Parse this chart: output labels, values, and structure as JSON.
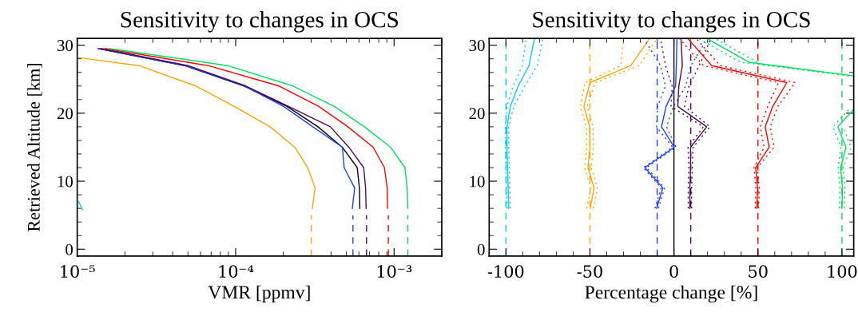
{
  "chart_data": [
    {
      "type": "line",
      "title": "Sensitivity to changes in OCS",
      "xlabel": "VMR [ppmv]",
      "ylabel": "Retrieved Altitude [km]",
      "log": "x",
      "xlim": [
        1e-05,
        0.002
      ],
      "xticks": [
        {
          "value": 1e-05,
          "label": "10⁻⁵"
        },
        {
          "value": 0.0001,
          "label": "10⁻⁴"
        },
        {
          "value": 0.001,
          "label": "10⁻³"
        }
      ],
      "ylim": [
        -1,
        31
      ],
      "yticks": [
        0,
        10,
        20,
        30
      ],
      "grid": false,
      "legend": false,
      "line_style": "solid",
      "series": [
        {
          "color": "#000000",
          "x": [
            0.000608,
            0.000604,
            0.000585,
            0.000471,
            0.000331,
            0.000211,
            0.000113,
            4.77e-05,
            1.36e-05
          ],
          "values": [
            6,
            9,
            12,
            15,
            18,
            21,
            24,
            27,
            29.5
          ]
        },
        {
          "color": "#ffa500",
          "x": [
            0.000305,
            0.000317,
            0.000285,
            0.000236,
            0.000165,
            9.8e-05,
            5.6e-05,
            2.45e-05,
            1e-05
          ],
          "values": [
            6,
            9,
            12,
            15,
            18,
            21,
            24,
            27,
            28.2
          ]
        },
        {
          "color": "#1f3fff",
          "x": [
            0.000545,
            0.000564,
            0.000484,
            0.000472,
            0.000307,
            0.000201,
            0.000114,
            4.8e-05,
            1.37e-05
          ],
          "values": [
            6,
            9,
            12,
            15,
            18,
            21,
            24,
            27,
            29.5
          ]
        },
        {
          "color": "#4b0a5a",
          "x": [
            0.000666,
            0.000661,
            0.000643,
            0.000518,
            0.000396,
            0.000216,
            0.000116,
            5e-05,
            1.42e-05
          ],
          "values": [
            6,
            9,
            12,
            15,
            18,
            21,
            24,
            27,
            29.5
          ]
        },
        {
          "color": "#ff0000",
          "x": [
            0.000908,
            0.000905,
            0.000869,
            0.000738,
            0.000511,
            0.000335,
            0.000188,
            6.7e-05,
            1.5e-05
          ],
          "values": [
            6,
            9,
            12,
            15,
            18,
            21,
            24,
            27,
            29.5
          ]
        },
        {
          "color": "#00e060",
          "x": [
            0.00122,
            0.00121,
            0.00117,
            0.00095,
            0.00065,
            0.00042,
            0.00023,
            8.9e-05,
            1.6e-05
          ],
          "values": [
            6,
            9,
            12,
            15,
            18,
            21,
            24,
            27,
            29.5
          ]
        },
        {
          "color": "#00ccff",
          "x": [
            1.02e-05,
            1.08e-05
          ],
          "values": [
            7,
            5.8
          ]
        },
        {
          "color": "#ffa500",
          "line_style": "dashed",
          "x": [
            0.0003,
            0.0003
          ],
          "values": [
            -1,
            5
          ]
        },
        {
          "color": "#1f3fff",
          "line_style": "dashed",
          "x": [
            0.00055,
            0.00055
          ],
          "values": [
            -1,
            5
          ]
        },
        {
          "color": "#4b0a5a",
          "line_style": "dashed",
          "x": [
            0.00067,
            0.00067
          ],
          "values": [
            -1,
            5
          ]
        },
        {
          "color": "#ff0000",
          "line_style": "dashed",
          "x": [
            0.00092,
            0.00092
          ],
          "values": [
            -1,
            5
          ]
        },
        {
          "color": "#00e060",
          "line_style": "dashed",
          "x": [
            0.00122,
            0.00122
          ],
          "values": [
            -1,
            5
          ]
        }
      ]
    },
    {
      "type": "line",
      "title": "Sensitivity to changes in OCS",
      "xlabel": "Percentage change [%]",
      "xlim": [
        -110,
        107
      ],
      "xticks": [
        -100,
        -50,
        0,
        50,
        100
      ],
      "ylim": [
        -1,
        31
      ],
      "yticks": [
        0,
        10,
        20,
        30
      ],
      "grid": false,
      "legend": false,
      "line_style": "solid",
      "ref_lines": [
        {
          "axis": "x",
          "value": -100,
          "color": "#00ccff",
          "line_style": "dashed"
        },
        {
          "axis": "x",
          "value": -50,
          "color": "#ffa500",
          "line_style": "dashed"
        },
        {
          "axis": "x",
          "value": -10,
          "color": "#1f3fff",
          "line_style": "dashed"
        },
        {
          "axis": "x",
          "value": 0,
          "color": "#000000",
          "line_style": "solid"
        },
        {
          "axis": "x",
          "value": 10,
          "color": "#4b0a5a",
          "line_style": "dashed"
        },
        {
          "axis": "x",
          "value": 50,
          "color": "#ff0000",
          "line_style": "dashed"
        },
        {
          "axis": "x",
          "value": 100,
          "color": "#00e060",
          "line_style": "dashed"
        }
      ],
      "series": [
        {
          "color": "#00ccff",
          "x": [
            -98.4,
            -98.7,
            -99.0,
            -99.4,
            -99.4,
            -97.4,
            -92.7,
            -86.3,
            -83.0
          ],
          "values": [
            6,
            9,
            12,
            15,
            18,
            21,
            24,
            27,
            31
          ]
        },
        {
          "color": "#00ccff",
          "line_style": "dotted",
          "x": [
            -99.4,
            -99.7,
            -100.0,
            -100.4,
            -100.4,
            -99.4,
            -95.7,
            -90.3,
            -88.0
          ],
          "values": [
            6,
            9,
            12,
            15,
            18,
            21,
            24,
            27,
            31
          ]
        },
        {
          "color": "#00ccff",
          "line_style": "dotted",
          "x": [
            -97.4,
            -97.7,
            -98.0,
            -98.4,
            -98.4,
            -95.4,
            -88.7,
            -81.3,
            -78.0
          ],
          "values": [
            6,
            9,
            12,
            15,
            18,
            21,
            24,
            27,
            31
          ]
        },
        {
          "color": "#ffa500",
          "x": [
            -49.9,
            -47.5,
            -51.2,
            -50.0,
            -50.2,
            -53.6,
            -50.0,
            -25.7,
            -14.4
          ],
          "values": [
            6,
            9,
            12,
            15,
            18,
            21,
            24.5,
            27,
            31
          ]
        },
        {
          "color": "#ffa500",
          "line_style": "dotted",
          "x": [
            -51.9,
            -49.5,
            -53.2,
            -52.0,
            -52.2,
            -55.6,
            -53.0,
            -31.7,
            -30.0
          ],
          "values": [
            6,
            9,
            12,
            15,
            18,
            21,
            24.5,
            27,
            31
          ]
        },
        {
          "color": "#ffa500",
          "line_style": "dotted",
          "x": [
            -47.9,
            -45.5,
            -49.2,
            -48.0,
            -48.2,
            -51.6,
            -47.0,
            -20.7,
            -10.0
          ],
          "values": [
            6,
            9,
            12,
            15,
            18,
            21,
            24.5,
            27,
            31
          ]
        },
        {
          "color": "#1f3fff",
          "x": [
            -10.3,
            -6.6,
            -17.3,
            0.2,
            -7.4,
            -4.7,
            1.0,
            1.4,
            1.8
          ],
          "values": [
            6,
            9,
            12,
            15,
            18,
            21,
            24,
            27,
            31
          ]
        },
        {
          "color": "#1f3fff",
          "line_style": "dotted",
          "x": [
            -11.3,
            -7.6,
            -18.3,
            -0.8,
            -10.4,
            -9.7,
            -5.0,
            -8.0,
            -18.0
          ],
          "values": [
            6,
            9,
            12,
            15,
            18,
            21,
            24,
            27,
            31
          ]
        },
        {
          "color": "#1f3fff",
          "line_style": "dotted",
          "x": [
            -9.3,
            -5.6,
            -16.3,
            1.2,
            -4.4,
            -0.3,
            7.0,
            10.0,
            20.0
          ],
          "values": [
            6,
            9,
            12,
            15,
            18,
            21,
            24,
            27,
            31
          ]
        },
        {
          "color": "#4b0a5a",
          "x": [
            9.5,
            9.5,
            9.9,
            9.9,
            19.5,
            2.3,
            2.9,
            5.0,
            4.2
          ],
          "values": [
            6,
            9,
            12,
            15,
            18,
            21,
            24,
            27,
            31
          ]
        },
        {
          "color": "#4b0a5a",
          "line_style": "dotted",
          "x": [
            8.5,
            8.5,
            8.9,
            8.4,
            17.5,
            -1.7,
            -1.1,
            -5.0,
            -8.0
          ],
          "values": [
            6,
            9,
            12,
            15,
            18,
            21,
            24,
            27,
            31
          ]
        },
        {
          "color": "#4b0a5a",
          "line_style": "dotted",
          "x": [
            10.5,
            10.5,
            10.9,
            11.4,
            21.5,
            6.3,
            8.9,
            15.0,
            22.0
          ],
          "values": [
            6,
            9,
            12,
            15,
            18,
            21,
            24,
            27,
            31
          ]
        },
        {
          "color": "#ff0000",
          "x": [
            49.4,
            49.8,
            48.6,
            56.7,
            54.3,
            58.8,
            67.2,
            22.5,
            8.2
          ],
          "values": [
            6,
            9,
            12,
            15,
            18,
            21,
            24.5,
            27,
            31
          ]
        },
        {
          "color": "#ff0000",
          "line_style": "dotted",
          "x": [
            48.4,
            48.8,
            47.6,
            53.7,
            51.3,
            55.8,
            62.2,
            17.5,
            3.2
          ],
          "values": [
            6,
            9,
            12,
            15,
            18,
            21,
            24.5,
            27,
            31
          ]
        },
        {
          "color": "#ff0000",
          "line_style": "dotted",
          "x": [
            50.4,
            50.8,
            49.6,
            59.7,
            57.3,
            61.8,
            72.2,
            27.5,
            13.2
          ],
          "values": [
            6,
            9,
            12,
            15,
            18,
            21,
            24.5,
            27,
            31
          ]
        },
        {
          "color": "#00e060",
          "x": [
            100.0,
            100.3,
            99.2,
            102.4,
            97.6,
            106.8
          ],
          "values": [
            6,
            9,
            12,
            15,
            18,
            20.5
          ]
        },
        {
          "color": "#00e060",
          "x": [
            106.8,
            44.6,
            19.5
          ],
          "values": [
            25.5,
            27.5,
            31
          ]
        },
        {
          "color": "#00e060",
          "line_style": "dotted",
          "x": [
            98.5,
            98.8,
            97.7,
            99.4,
            94.6,
            104.0
          ],
          "values": [
            6,
            9,
            12,
            15,
            18,
            20.5
          ]
        },
        {
          "color": "#00e060",
          "line_style": "dotted",
          "x": [
            104.0,
            39.6,
            14.5
          ],
          "values": [
            25.5,
            27.5,
            31
          ]
        },
        {
          "color": "#00e060",
          "line_style": "dotted",
          "x": [
            101.5,
            101.8,
            100.7,
            105.4,
            100.6
          ],
          "values": [
            6,
            9,
            12,
            15,
            18
          ]
        },
        {
          "color": "#00e060",
          "line_style": "dotted",
          "x": [
            49.6,
            24.5
          ],
          "values": [
            27.5,
            31
          ]
        }
      ]
    }
  ]
}
